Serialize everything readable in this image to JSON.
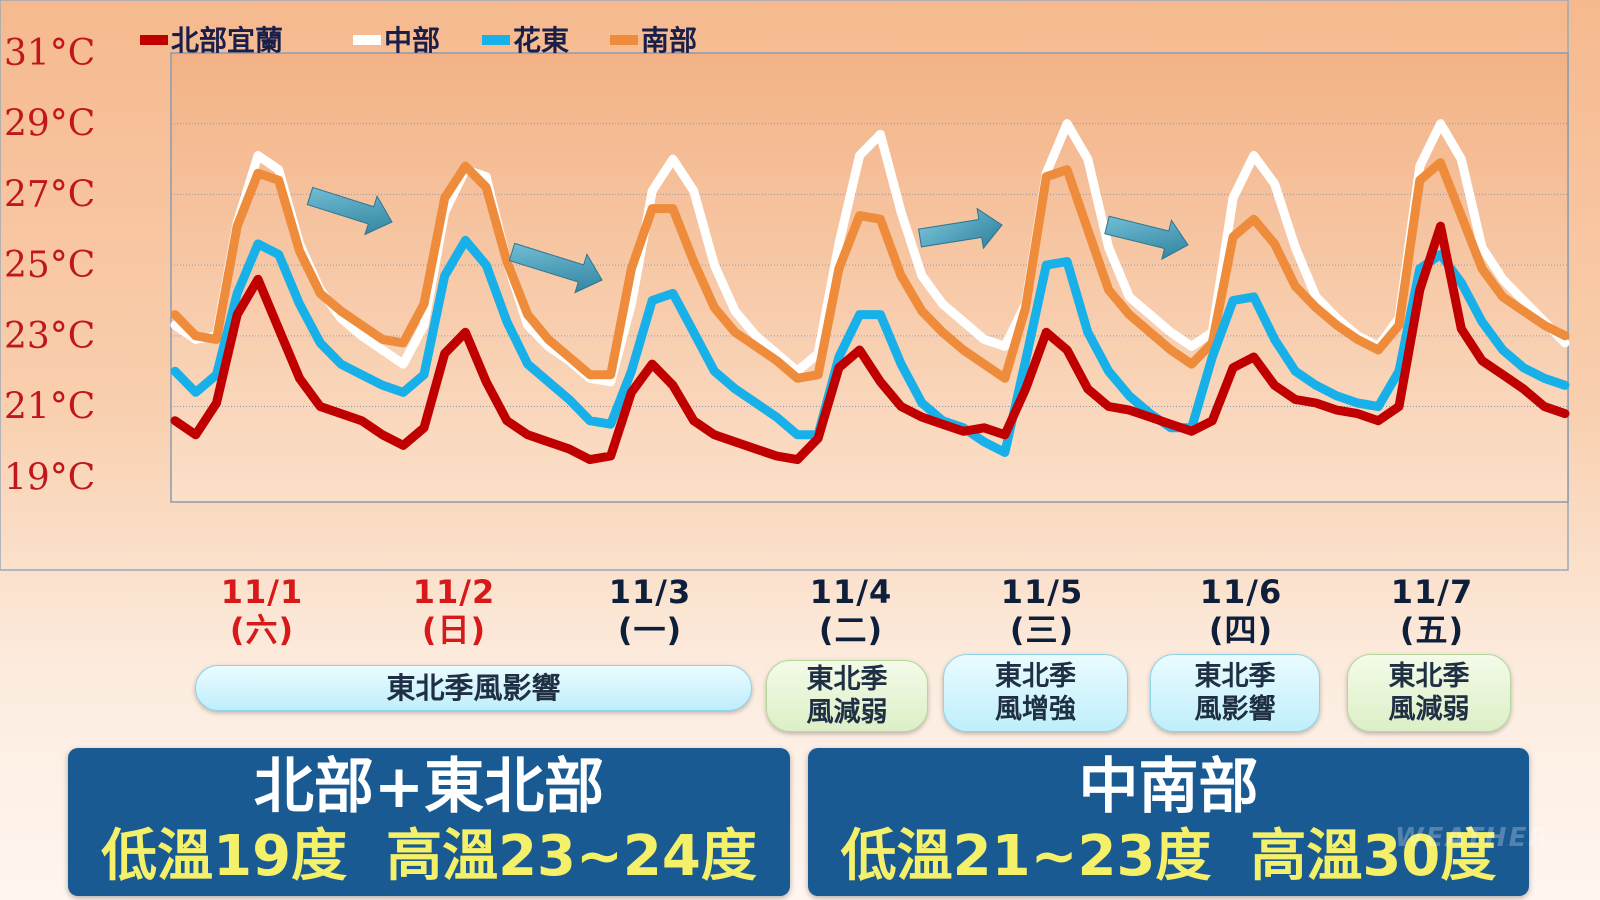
{
  "chart_data": {
    "type": "line",
    "title": "",
    "xlabel": "",
    "ylabel": "",
    "ylim": [
      18.3,
      31
    ],
    "y_ticks": [
      "31°C",
      "29°C",
      "27°C",
      "25°C",
      "23°C",
      "21°C",
      "19°C"
    ],
    "grid": true,
    "legend_position": "top-left",
    "series": [
      {
        "name": "北部宜蘭",
        "color": "#c00000",
        "values": [
          20.6,
          20.2,
          21.1,
          23.6,
          24.6,
          23.2,
          21.8,
          21.0,
          20.8,
          20.6,
          20.2,
          19.9,
          20.4,
          22.5,
          23.1,
          21.7,
          20.6,
          20.2,
          20.0,
          19.8,
          19.5,
          19.6,
          21.4,
          22.2,
          21.6,
          20.6,
          20.2,
          20.0,
          19.8,
          19.6,
          19.5,
          20.1,
          22.1,
          22.6,
          21.7,
          21.0,
          20.7,
          20.5,
          20.3,
          20.4,
          20.2,
          21.5,
          23.1,
          22.6,
          21.5,
          21.0,
          20.9,
          20.7,
          20.5,
          20.3,
          20.6,
          22.1,
          22.4,
          21.6,
          21.2,
          21.1,
          20.9,
          20.8,
          20.6,
          21.0,
          24.3,
          26.1,
          23.2,
          22.3,
          21.9,
          21.5,
          21.0,
          20.8
        ]
      },
      {
        "name": "中部",
        "color": "#ffffff",
        "values": [
          23.3,
          22.9,
          23.0,
          26.2,
          28.1,
          27.7,
          25.6,
          24.3,
          23.5,
          23.0,
          22.6,
          22.2,
          23.3,
          26.5,
          27.7,
          27.5,
          25.1,
          23.3,
          22.7,
          22.3,
          21.8,
          21.7,
          23.9,
          27.1,
          28.0,
          27.1,
          25.0,
          23.7,
          23.0,
          22.5,
          22.0,
          22.5,
          25.6,
          28.1,
          28.7,
          26.5,
          24.7,
          23.9,
          23.4,
          22.9,
          22.7,
          23.9,
          27.6,
          29.0,
          28.0,
          25.5,
          24.1,
          23.6,
          23.1,
          22.7,
          23.1,
          26.9,
          28.1,
          27.3,
          25.5,
          24.1,
          23.5,
          23.0,
          22.7,
          23.5,
          27.8,
          29.0,
          28.0,
          25.5,
          24.6,
          24.0,
          23.4,
          22.8
        ]
      },
      {
        "name": "花東",
        "color": "#18b0e8",
        "values": [
          22.0,
          21.4,
          21.9,
          24.2,
          25.6,
          25.3,
          23.9,
          22.8,
          22.2,
          21.9,
          21.6,
          21.4,
          21.9,
          24.7,
          25.7,
          25.0,
          23.4,
          22.2,
          21.7,
          21.2,
          20.6,
          20.5,
          22.0,
          24.0,
          24.2,
          23.1,
          22.0,
          21.5,
          21.1,
          20.7,
          20.2,
          20.2,
          22.4,
          23.6,
          23.6,
          22.2,
          21.1,
          20.6,
          20.4,
          20.0,
          19.7,
          22.3,
          25.0,
          25.1,
          23.1,
          22.0,
          21.3,
          20.8,
          20.4,
          20.4,
          22.4,
          24.0,
          24.1,
          22.9,
          22.0,
          21.6,
          21.3,
          21.1,
          21.0,
          22.0,
          24.9,
          25.3,
          24.5,
          23.4,
          22.6,
          22.1,
          21.8,
          21.6
        ]
      },
      {
        "name": "南部",
        "color": "#ef8c3b",
        "values": [
          23.6,
          23.0,
          22.9,
          26.1,
          27.6,
          27.4,
          25.4,
          24.2,
          23.7,
          23.3,
          22.9,
          22.8,
          23.9,
          26.9,
          27.8,
          27.2,
          25.1,
          23.6,
          22.9,
          22.4,
          21.9,
          21.9,
          24.9,
          26.6,
          26.6,
          25.1,
          23.8,
          23.1,
          22.7,
          22.3,
          21.8,
          21.9,
          24.9,
          26.4,
          26.3,
          24.7,
          23.7,
          23.1,
          22.6,
          22.2,
          21.8,
          23.8,
          27.5,
          27.7,
          26.0,
          24.3,
          23.6,
          23.1,
          22.6,
          22.2,
          22.8,
          25.8,
          26.3,
          25.6,
          24.4,
          23.8,
          23.3,
          22.9,
          22.6,
          23.3,
          27.4,
          27.9,
          26.4,
          24.9,
          24.1,
          23.7,
          23.3,
          23.0
        ]
      }
    ]
  },
  "dates": [
    {
      "date": "11/1",
      "dow": "(六)",
      "color": "#d81919"
    },
    {
      "date": "11/2",
      "dow": "(日)",
      "color": "#d81919"
    },
    {
      "date": "11/3",
      "dow": "(一)",
      "color": "#0e1f3c"
    },
    {
      "date": "11/4",
      "dow": "(二)",
      "color": "#0e1f3c"
    },
    {
      "date": "11/5",
      "dow": "(三)",
      "color": "#0e1f3c"
    },
    {
      "date": "11/6",
      "dow": "(四)",
      "color": "#0e1f3c"
    },
    {
      "date": "11/7",
      "dow": "(五)",
      "color": "#0e1f3c"
    }
  ],
  "monsoon_notes": [
    {
      "text": "東北季風影響",
      "style": "blue"
    },
    {
      "text": "東北季\n風減弱",
      "style": "green"
    },
    {
      "text": "東北季\n風增強",
      "style": "blue"
    },
    {
      "text": "東北季\n風影響",
      "style": "blue"
    },
    {
      "text": "東北季\n風減弱",
      "style": "green"
    }
  ],
  "summary": {
    "north": {
      "region": "北部+東北部",
      "temps": "低溫19度  高溫23~24度"
    },
    "south": {
      "region": "中南部",
      "temps": "低溫21~23度  高溫30度"
    }
  },
  "watermark": "WEATHER",
  "colors": {
    "axis_label": "#c0171d",
    "box": "#1a5a93",
    "box_temp_text": "#f4f06a",
    "arrow": "#3d9ab5"
  }
}
